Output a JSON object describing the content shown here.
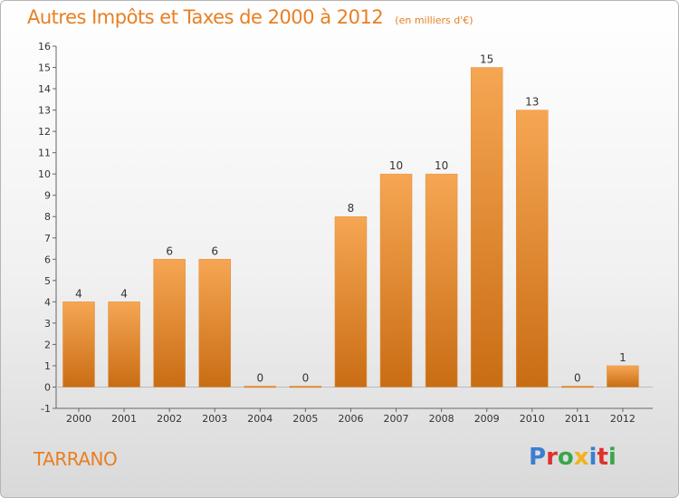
{
  "header": {
    "title": "Autres Impôts et Taxes de 2000 à 2012",
    "subtitle": "(en milliers d'€)"
  },
  "footer": {
    "commune": "TARRANO",
    "brand": "Proxiti",
    "brand_colors": [
      "#3a7fd0",
      "#e0302c",
      "#3aa64a",
      "#f2b31b",
      "#3a7fd0",
      "#e0302c",
      "#3aa64a"
    ]
  },
  "chart_data": {
    "type": "bar",
    "title": "Autres Impôts et Taxes de 2000 à 2012",
    "subtitle": "(en milliers d'€)",
    "categories": [
      "2000",
      "2001",
      "2002",
      "2003",
      "2004",
      "2005",
      "2006",
      "2007",
      "2008",
      "2009",
      "2010",
      "2011",
      "2012"
    ],
    "values": [
      4,
      4,
      6,
      6,
      0,
      0,
      8,
      10,
      10,
      15,
      13,
      0,
      1
    ],
    "ylim": [
      -1,
      16
    ],
    "yticks": [
      -1,
      0,
      1,
      2,
      3,
      4,
      5,
      6,
      7,
      8,
      9,
      10,
      11,
      12,
      13,
      14,
      15,
      16
    ],
    "xlabel": "",
    "ylabel": "",
    "grid": false,
    "bar_color": "#f0953a",
    "bar_color_dark": "#c96d14"
  }
}
